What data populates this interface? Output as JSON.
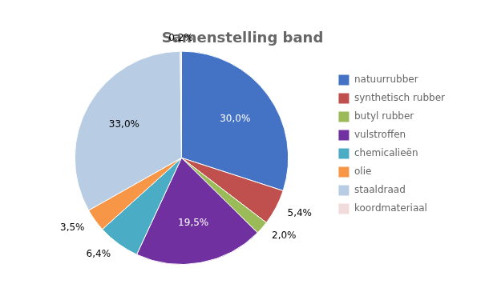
{
  "chart_data": {
    "type": "pie",
    "title": "Samenstelling band",
    "categories": [
      "natuurrubber",
      "synthetisch rubber",
      "butyl rubber",
      "vulstroffen",
      "chemicalieën",
      "olie",
      "staaldraad",
      "koordmateriaal"
    ],
    "values": [
      30.0,
      5.4,
      2.0,
      19.5,
      6.4,
      3.5,
      33.0,
      0.2
    ],
    "value_labels": [
      "30,0%",
      "5,4%",
      "2,0%",
      "19,5%",
      "6,4%",
      "3,5%",
      "33,0%",
      "0,2%"
    ],
    "colors": [
      "#4472C4",
      "#C0504D",
      "#9BBB59",
      "#7030A0",
      "#4BACC6",
      "#F79646",
      "#B8CCE4",
      "#F2DCDB"
    ],
    "data_labels": true,
    "legend": "right"
  }
}
